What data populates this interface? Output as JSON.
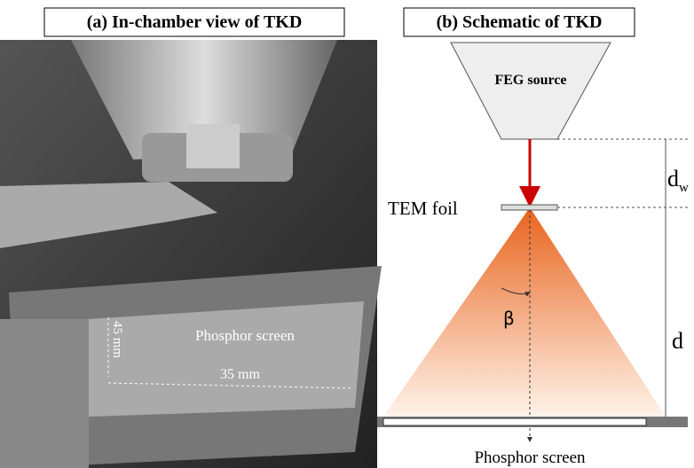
{
  "panel_a": {
    "title": "(a) In-chamber view of TKD",
    "labels": {
      "screen": "Phosphor screen",
      "height": "45 mm",
      "width": "35 mm"
    }
  },
  "panel_b": {
    "title": "(b) Schematic of TKD",
    "source": "FEG source",
    "foil": "TEM foil",
    "dw": {
      "main": "d",
      "sub": "w"
    },
    "d": "d",
    "angle": "β",
    "screen": "Phosphor screen"
  }
}
